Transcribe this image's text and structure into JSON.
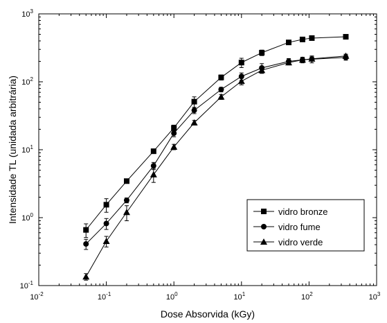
{
  "chart_data": {
    "type": "line",
    "xlabel": "Dose Absorvida (kGy)",
    "ylabel": "Intensidade TL (unidada arbitrária)",
    "xscale": "log",
    "yscale": "log",
    "xlim": [
      0.01,
      1000
    ],
    "ylim": [
      0.1,
      1000
    ],
    "x_ticks": [
      {
        "value": 0.01,
        "base": "10",
        "exp": "-2"
      },
      {
        "value": 0.1,
        "base": "10",
        "exp": "-1"
      },
      {
        "value": 1,
        "base": "10",
        "exp": "0"
      },
      {
        "value": 10,
        "base": "10",
        "exp": "1"
      },
      {
        "value": 100,
        "base": "10",
        "exp": "2"
      },
      {
        "value": 1000,
        "base": "10",
        "exp": "3"
      }
    ],
    "y_ticks": [
      {
        "value": 0.1,
        "base": "10",
        "exp": "-1"
      },
      {
        "value": 1,
        "base": "10",
        "exp": "0"
      },
      {
        "value": 10,
        "base": "10",
        "exp": "1"
      },
      {
        "value": 100,
        "base": "10",
        "exp": "2"
      },
      {
        "value": 1000,
        "base": "10",
        "exp": "3"
      }
    ],
    "legend_position": "lower-right",
    "grid": false,
    "series": [
      {
        "name": "vidro bronze",
        "marker": "square",
        "x": [
          0.05,
          0.1,
          0.2,
          0.5,
          1,
          2,
          5,
          10,
          20,
          50,
          80,
          110,
          350
        ],
        "y": [
          0.66,
          1.55,
          3.45,
          9.5,
          21,
          51,
          116,
          192,
          268,
          380,
          420,
          440,
          460
        ],
        "err": [
          0.15,
          0.35,
          0.25,
          0.6,
          2,
          9,
          10,
          30,
          25,
          25,
          25,
          20,
          20
        ]
      },
      {
        "name": "vidro fume",
        "marker": "circle",
        "x": [
          0.05,
          0.1,
          0.2,
          0.5,
          1,
          2,
          5,
          10,
          20,
          50,
          80,
          110,
          350
        ],
        "y": [
          0.41,
          0.82,
          1.8,
          5.8,
          17.5,
          38,
          77,
          120,
          160,
          200,
          210,
          215,
          228
        ],
        "err": [
          0.07,
          0.15,
          0.15,
          0.7,
          2,
          4,
          6,
          15,
          25,
          20,
          20,
          25,
          20
        ]
      },
      {
        "name": "vidro verde",
        "marker": "triangle",
        "x": [
          0.05,
          0.1,
          0.2,
          0.5,
          1,
          2,
          5,
          10,
          20,
          50,
          80,
          110,
          350
        ],
        "y": [
          0.135,
          0.45,
          1.2,
          4.3,
          11,
          25,
          60,
          102,
          148,
          192,
          210,
          218,
          240
        ],
        "err": [
          0.015,
          0.08,
          0.3,
          1.0,
          1,
          2,
          5,
          12,
          15,
          15,
          15,
          15,
          15
        ]
      }
    ]
  }
}
